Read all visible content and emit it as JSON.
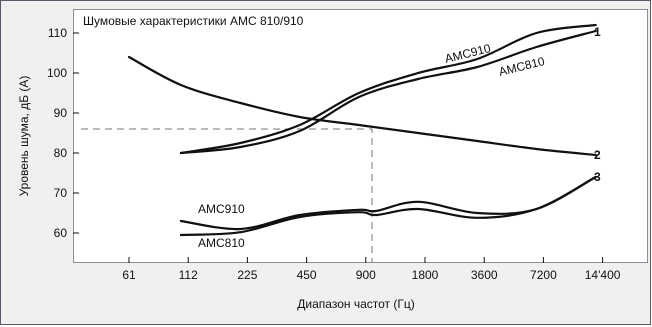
{
  "chart_data": {
    "type": "line",
    "title": "Шумовые характеристики AMC 810/910",
    "xlabel": "Диапазон частот (Гц)",
    "ylabel": "Уровень шума, дБ (A)",
    "x_ticks": [
      "61",
      "112",
      "225",
      "450",
      "900",
      "1800",
      "3600",
      "7200",
      "14'400"
    ],
    "y_ticks": [
      60,
      70,
      80,
      90,
      100,
      110
    ],
    "ylim": [
      52.5,
      116
    ],
    "x_scale": "log",
    "grid": false,
    "reference_lines": {
      "level_db": 86,
      "frequency_hz": 1050
    },
    "series": [
      {
        "name": "AMC910",
        "curve_id": "1",
        "x": [
          112,
          225,
          450,
          900,
          1800,
          3600,
          7200,
          14400
        ],
        "y": [
          80,
          82.5,
          87,
          95,
          100,
          103.5,
          110,
          112
        ]
      },
      {
        "name": "AMC810",
        "curve_id": "1",
        "x": [
          112,
          225,
          450,
          900,
          1800,
          3600,
          7200,
          14400
        ],
        "y": [
          80,
          81.5,
          85.5,
          94,
          98.5,
          101.5,
          106.5,
          110.5
        ]
      },
      {
        "name": "",
        "curve_id": "2",
        "x": [
          61,
          112,
          225,
          450,
          900,
          1800,
          3600,
          7200,
          14400
        ],
        "y": [
          104,
          97,
          92.5,
          89,
          87,
          85,
          83,
          81,
          79.5
        ]
      },
      {
        "name": "AMC910",
        "curve_id": "3",
        "x": [
          112,
          225,
          450,
          900,
          1100,
          1800,
          3600,
          7200,
          14400
        ],
        "y": [
          63,
          61,
          64.5,
          65.8,
          65.5,
          67.8,
          65,
          66,
          74
        ]
      },
      {
        "name": "AMC810",
        "curve_id": "3",
        "x": [
          112,
          225,
          450,
          900,
          1100,
          1800,
          3600,
          7200,
          14400
        ],
        "y": [
          59.5,
          60.2,
          64,
          65.2,
          64.5,
          66,
          63.8,
          66,
          74
        ]
      }
    ],
    "curve_labels": [
      "1",
      "2",
      "3"
    ],
    "series_labels": [
      "AMC910",
      "AMC810",
      "AMC910",
      "AMC810"
    ]
  }
}
